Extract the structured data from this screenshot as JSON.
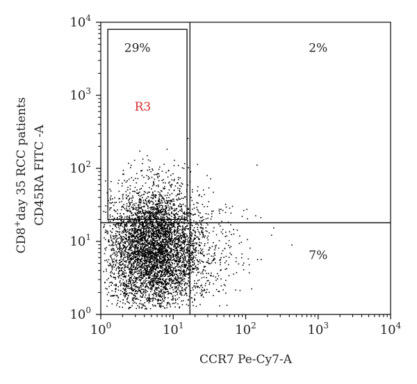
{
  "chart_data": {
    "type": "scatter",
    "title": "",
    "xlabel": "CCR7 Pe-Cy7-A",
    "ylabel_line1_prefix": "CD8",
    "ylabel_line1_sup": "+",
    "ylabel_line1_suffix": "day 35 RCC patients",
    "ylabel_line2": "CD45RA FITC -A",
    "x_scale": "log",
    "y_scale": "log",
    "xlim": [
      1,
      10000
    ],
    "ylim": [
      1,
      10000
    ],
    "x_ticks": [
      {
        "base": "10",
        "exp": "0"
      },
      {
        "base": "10",
        "exp": "1"
      },
      {
        "base": "10",
        "exp": "2"
      },
      {
        "base": "10",
        "exp": "3"
      },
      {
        "base": "10",
        "exp": "4"
      }
    ],
    "y_ticks": [
      {
        "base": "10",
        "exp": "0"
      },
      {
        "base": "10",
        "exp": "1"
      },
      {
        "base": "10",
        "exp": "2"
      },
      {
        "base": "10",
        "exp": "3"
      },
      {
        "base": "10",
        "exp": "4"
      }
    ],
    "quadrant_divider": {
      "x": 17,
      "y": 18
    },
    "quadrant_labels": [
      {
        "label": "29%",
        "x": 3.2,
        "y": 4500
      },
      {
        "label": "2%",
        "x": 1000,
        "y": 4500
      },
      {
        "label": "7%",
        "x": 1000,
        "y": 6.5
      }
    ],
    "gate": {
      "name": "R3",
      "x_min": 1.25,
      "x_max": 15.5,
      "y_min": 20,
      "y_max": 8000,
      "label_x": 3.8,
      "label_y": 620
    },
    "point_color": "#000000",
    "gate_label_color": "#d62a2a",
    "point_count": 5200,
    "population": {
      "center_log_x": 0.72,
      "center_log_y": 0.9,
      "spread_log_x": 0.32,
      "spread_log_y": 0.42
    }
  }
}
